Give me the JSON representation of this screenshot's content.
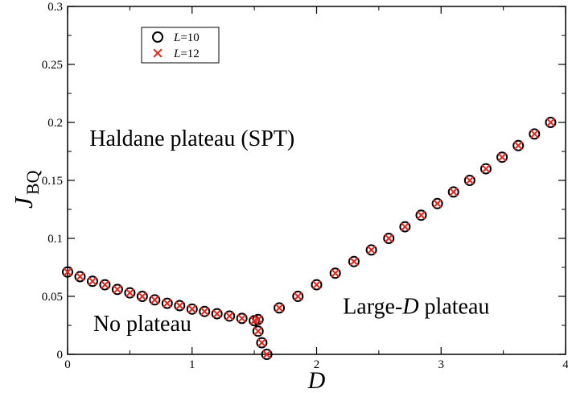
{
  "chart_data": {
    "type": "scatter",
    "title": "",
    "xlabel": "D",
    "ylabel_main": "J",
    "ylabel_sub": "BQ",
    "xlim": [
      0,
      4
    ],
    "ylim": [
      0,
      0.3
    ],
    "xticks": [
      0,
      1,
      2,
      3,
      4
    ],
    "xtick_labels": [
      "0",
      "1",
      "2",
      "3",
      "4"
    ],
    "yticks": [
      0,
      0.05,
      0.1,
      0.15,
      0.2,
      0.25,
      0.3
    ],
    "ytick_labels": [
      "0",
      "0.05",
      "0.1",
      "0.15",
      "0.2",
      "0.25",
      "0.3"
    ],
    "grid": false,
    "legend_position": "top-left",
    "series": [
      {
        "name": "L=10",
        "legend_italic": "L",
        "legend_rest": "=10",
        "marker": "circle",
        "color": "#000000",
        "x": [
          0.0,
          0.1,
          0.2,
          0.3,
          0.4,
          0.5,
          0.6,
          0.7,
          0.8,
          0.9,
          1.0,
          1.1,
          1.2,
          1.3,
          1.4,
          1.5,
          1.53,
          1.53,
          1.56,
          1.6,
          1.7,
          1.85,
          2.0,
          2.15,
          2.3,
          2.44,
          2.58,
          2.71,
          2.84,
          2.97,
          3.1,
          3.23,
          3.36,
          3.49,
          3.62,
          3.75,
          3.88
        ],
        "y": [
          0.071,
          0.067,
          0.063,
          0.06,
          0.056,
          0.053,
          0.05,
          0.047,
          0.044,
          0.042,
          0.039,
          0.037,
          0.035,
          0.033,
          0.031,
          0.029,
          0.03,
          0.02,
          0.01,
          0.0,
          0.04,
          0.05,
          0.06,
          0.07,
          0.08,
          0.09,
          0.1,
          0.11,
          0.12,
          0.13,
          0.14,
          0.15,
          0.16,
          0.17,
          0.18,
          0.19,
          0.2
        ]
      },
      {
        "name": "L=12",
        "legend_italic": "L",
        "legend_rest": "=12",
        "marker": "x",
        "color": "#e8231b",
        "x": [
          0.0,
          0.1,
          0.2,
          0.3,
          0.4,
          0.5,
          0.6,
          0.7,
          0.8,
          0.9,
          1.0,
          1.1,
          1.2,
          1.3,
          1.4,
          1.5,
          1.53,
          1.53,
          1.56,
          1.6,
          1.7,
          1.85,
          2.0,
          2.15,
          2.3,
          2.44,
          2.58,
          2.71,
          2.84,
          2.97,
          3.1,
          3.23,
          3.36,
          3.49,
          3.62,
          3.75,
          3.88
        ],
        "y": [
          0.071,
          0.067,
          0.063,
          0.06,
          0.056,
          0.053,
          0.05,
          0.047,
          0.044,
          0.042,
          0.039,
          0.037,
          0.035,
          0.033,
          0.031,
          0.029,
          0.03,
          0.02,
          0.01,
          0.0,
          0.04,
          0.05,
          0.06,
          0.07,
          0.08,
          0.09,
          0.1,
          0.11,
          0.12,
          0.13,
          0.14,
          0.15,
          0.16,
          0.17,
          0.18,
          0.19,
          0.2
        ]
      }
    ],
    "annotations": [
      {
        "id": "haldane",
        "text": "Haldane plateau (SPT)",
        "x": 1.0,
        "y": 0.18
      },
      {
        "id": "noplateau",
        "text": "No plateau",
        "x": 0.6,
        "y": 0.02
      },
      {
        "id": "larged",
        "text_prefix": "Large-",
        "text_italic": "D",
        "text_suffix": " plateau",
        "x": 2.8,
        "y": 0.035
      }
    ]
  }
}
